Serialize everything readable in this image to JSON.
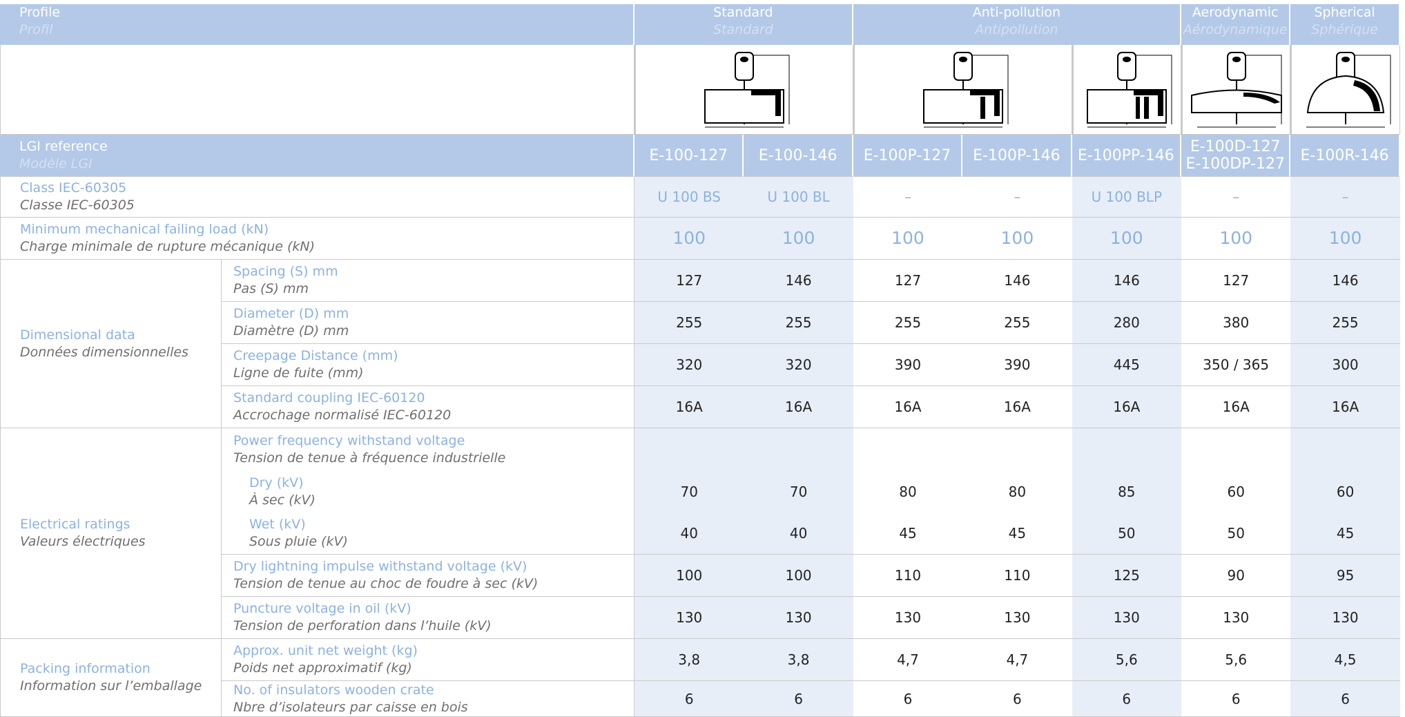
{
  "header": {
    "profile": {
      "en": "Profile",
      "fr": "Profil"
    },
    "groups": [
      {
        "en": "Standard",
        "fr": "Standard"
      },
      {
        "en": "Anti-pollution",
        "fr": "Antipollution"
      },
      {
        "en": "Aerodynamic",
        "fr": "Aérodynamique"
      },
      {
        "en": "Spherical",
        "fr": "Sphérique"
      }
    ]
  },
  "reference": {
    "en": "LGI reference",
    "fr": "Modèle LGI",
    "values": [
      "E-100-127",
      "E-100-146",
      "E-100P-127",
      "E-100P-146",
      "E-100PP-146",
      "E-100D-127 E-100DP-127",
      "E-100R-146"
    ]
  },
  "class": {
    "en": "Class IEC-60305",
    "fr": "Classe IEC-60305",
    "values": [
      "U 100 BS",
      "U 100 BL",
      "–",
      "–",
      "U 100 BLP",
      "–",
      "–"
    ]
  },
  "load": {
    "en": "Minimum mechanical failing load (kN)",
    "fr": "Charge minimale de rupture mécanique (kN)",
    "values": [
      100,
      100,
      100,
      100,
      100,
      100,
      100
    ]
  },
  "sections": [
    {
      "en": "Dimensional data",
      "fr": "Données dimensionnelles",
      "rows": [
        {
          "en": "Spacing (S) mm",
          "fr": "Pas (S) mm",
          "values": [
            127,
            146,
            127,
            146,
            146,
            127,
            146
          ]
        },
        {
          "en": "Diameter (D) mm",
          "fr": "Diamètre (D) mm",
          "values": [
            255,
            255,
            255,
            255,
            280,
            380,
            255
          ]
        },
        {
          "en": "Creepage Distance (mm)",
          "fr": "Ligne de fuite (mm)",
          "values": [
            320,
            320,
            390,
            390,
            445,
            "350 / 365",
            300
          ]
        },
        {
          "en": "Standard coupling IEC-60120",
          "fr": "Accrochage normalisé IEC-60120",
          "values": [
            "16A",
            "16A",
            "16A",
            "16A",
            "16A",
            "16A",
            "16A"
          ]
        }
      ]
    },
    {
      "en": "Electrical ratings",
      "fr": "Valeurs électriques",
      "rows": [
        {
          "en": "Power frequency withstand voltage",
          "fr": "Tension de tenue à fréquence industrielle",
          "subrows": [
            {
              "en": "Dry (kV)",
              "fr": "À sec (kV)",
              "values": [
                70,
                70,
                80,
                80,
                85,
                60,
                60
              ]
            },
            {
              "en": "Wet (kV)",
              "fr": "Sous pluie (kV)",
              "values": [
                40,
                40,
                45,
                45,
                50,
                50,
                45
              ]
            }
          ]
        },
        {
          "en": "Dry lightning impulse withstand voltage (kV)",
          "fr": "Tension de tenue au choc de foudre à sec (kV)",
          "values": [
            100,
            100,
            110,
            110,
            125,
            90,
            95
          ]
        },
        {
          "en": "Puncture voltage in oil (kV)",
          "fr": "Tension de perforation dans l’huile (kV)",
          "values": [
            130,
            130,
            130,
            130,
            130,
            130,
            130
          ]
        }
      ]
    },
    {
      "en": "Packing information",
      "fr": "Information sur l’emballage",
      "rows": [
        {
          "en": "Approx. unit net weight (kg)",
          "fr": "Poids net approximatif (kg)",
          "values": [
            "3,8",
            "3,8",
            "4,7",
            "4,7",
            "5,6",
            "5,6",
            "4,5"
          ]
        },
        {
          "en": "No. of insulators wooden crate",
          "fr": "Nbre d’isolateurs par caisse en bois",
          "values": [
            6,
            6,
            6,
            6,
            6,
            6,
            6
          ]
        }
      ]
    }
  ]
}
